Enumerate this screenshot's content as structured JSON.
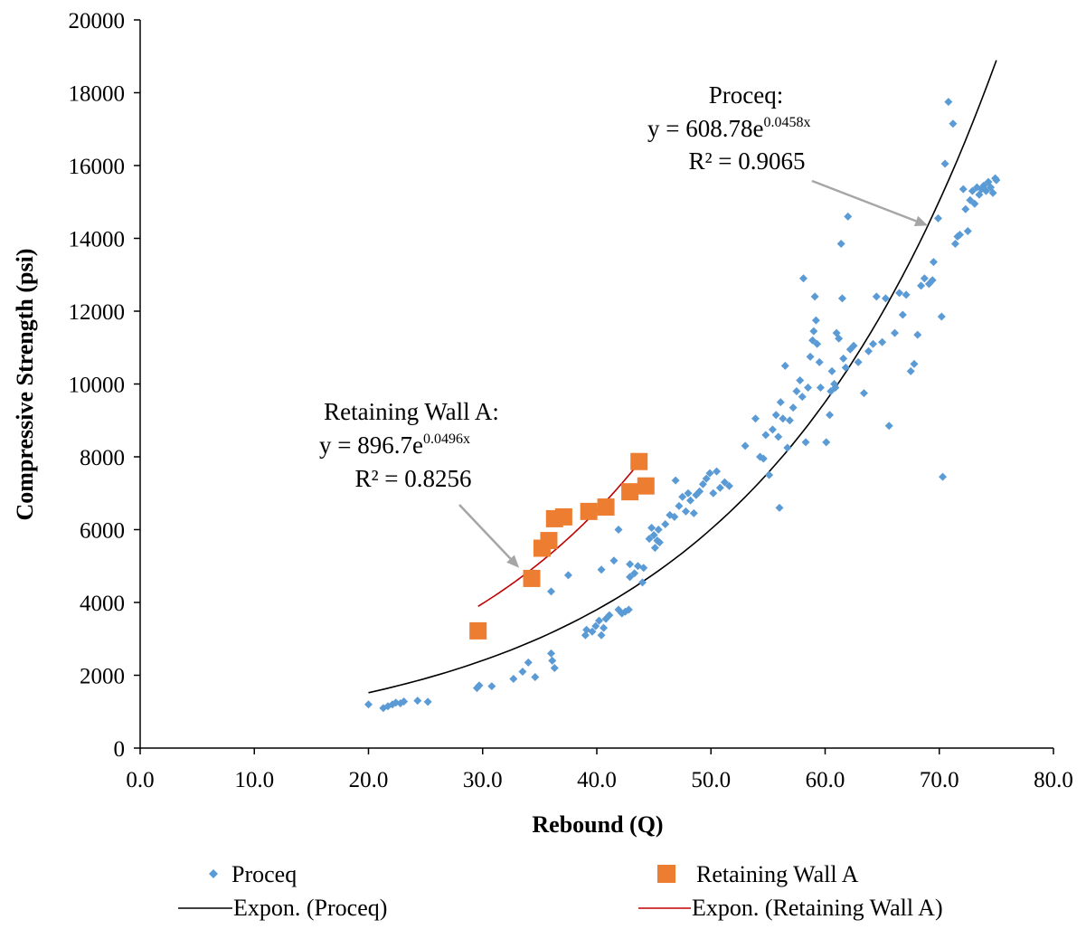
{
  "chart_data": {
    "type": "scatter",
    "title": "",
    "xlabel": "Rebound (Q)",
    "ylabel": "Compressive Strength (psi)",
    "xlim": [
      0,
      80
    ],
    "ylim": [
      0,
      20000
    ],
    "x_ticks": [
      "0.0",
      "10.0",
      "20.0",
      "30.0",
      "40.0",
      "50.0",
      "60.0",
      "70.0",
      "80.0"
    ],
    "y_ticks": [
      "0",
      "2000",
      "4000",
      "6000",
      "8000",
      "10000",
      "12000",
      "14000",
      "16000",
      "18000",
      "20000"
    ],
    "grid": false,
    "legend_position": "bottom",
    "series": [
      {
        "name": "Proceq",
        "marker": "diamond",
        "color": "#5B9BD5",
        "points": [
          [
            20.0,
            1200
          ],
          [
            21.3,
            1100
          ],
          [
            21.7,
            1150
          ],
          [
            22.1,
            1200
          ],
          [
            22.4,
            1250
          ],
          [
            22.8,
            1230
          ],
          [
            23.1,
            1280
          ],
          [
            24.3,
            1300
          ],
          [
            25.2,
            1270
          ],
          [
            29.5,
            1650
          ],
          [
            29.7,
            1720
          ],
          [
            30.8,
            1700
          ],
          [
            32.7,
            1900
          ],
          [
            33.5,
            2100
          ],
          [
            34.0,
            2350
          ],
          [
            34.6,
            1950
          ],
          [
            36.0,
            2600
          ],
          [
            36.1,
            2400
          ],
          [
            36.3,
            2200
          ],
          [
            36.0,
            4300
          ],
          [
            37.5,
            4750
          ],
          [
            39.0,
            3100
          ],
          [
            39.1,
            3250
          ],
          [
            39.6,
            3200
          ],
          [
            39.9,
            3350
          ],
          [
            40.2,
            3500
          ],
          [
            40.4,
            3100
          ],
          [
            40.6,
            3300
          ],
          [
            40.8,
            3550
          ],
          [
            41.1,
            3650
          ],
          [
            40.4,
            4900
          ],
          [
            41.5,
            5150
          ],
          [
            41.9,
            3800
          ],
          [
            42.2,
            3700
          ],
          [
            42.5,
            3750
          ],
          [
            42.8,
            3800
          ],
          [
            41.9,
            6000
          ],
          [
            42.9,
            4700
          ],
          [
            42.9,
            5050
          ],
          [
            43.3,
            4800
          ],
          [
            43.6,
            5000
          ],
          [
            44.0,
            4550
          ],
          [
            44.1,
            4950
          ],
          [
            44.6,
            5750
          ],
          [
            45.0,
            5850
          ],
          [
            45.1,
            5500
          ],
          [
            45.3,
            5700
          ],
          [
            45.5,
            5650
          ],
          [
            44.8,
            6050
          ],
          [
            45.4,
            6000
          ],
          [
            46.0,
            6150
          ],
          [
            46.4,
            6400
          ],
          [
            46.8,
            6350
          ],
          [
            46.9,
            7350
          ],
          [
            47.2,
            6650
          ],
          [
            47.5,
            6900
          ],
          [
            47.8,
            6500
          ],
          [
            48.0,
            7000
          ],
          [
            48.2,
            6800
          ],
          [
            48.5,
            6450
          ],
          [
            48.7,
            6950
          ],
          [
            49.0,
            7050
          ],
          [
            49.3,
            7250
          ],
          [
            49.6,
            7400
          ],
          [
            49.9,
            7550
          ],
          [
            50.2,
            7000
          ],
          [
            50.5,
            7600
          ],
          [
            50.8,
            7150
          ],
          [
            51.2,
            7300
          ],
          [
            51.6,
            7200
          ],
          [
            53.0,
            8300
          ],
          [
            53.9,
            9050
          ],
          [
            54.3,
            8000
          ],
          [
            54.6,
            7950
          ],
          [
            54.8,
            8600
          ],
          [
            55.1,
            7500
          ],
          [
            55.4,
            8750
          ],
          [
            55.7,
            9150
          ],
          [
            55.9,
            8550
          ],
          [
            56.0,
            6600
          ],
          [
            56.1,
            9500
          ],
          [
            56.3,
            9050
          ],
          [
            56.5,
            10500
          ],
          [
            56.7,
            8250
          ],
          [
            56.9,
            9000
          ],
          [
            57.2,
            9350
          ],
          [
            57.5,
            9800
          ],
          [
            57.8,
            10100
          ],
          [
            58.0,
            9650
          ],
          [
            58.1,
            12900
          ],
          [
            58.3,
            8400
          ],
          [
            58.5,
            9900
          ],
          [
            58.7,
            10750
          ],
          [
            58.9,
            11200
          ],
          [
            59.0,
            11450
          ],
          [
            59.1,
            12400
          ],
          [
            59.2,
            11750
          ],
          [
            59.3,
            11100
          ],
          [
            59.5,
            10600
          ],
          [
            59.6,
            9900
          ],
          [
            60.1,
            8400
          ],
          [
            60.4,
            9150
          ],
          [
            60.5,
            9800
          ],
          [
            60.6,
            10350
          ],
          [
            60.8,
            10000
          ],
          [
            61.0,
            11400
          ],
          [
            61.2,
            11250
          ],
          [
            61.4,
            13850
          ],
          [
            61.5,
            12350
          ],
          [
            61.6,
            10700
          ],
          [
            61.8,
            10450
          ],
          [
            62.0,
            14600
          ],
          [
            62.2,
            10950
          ],
          [
            62.5,
            11050
          ],
          [
            62.9,
            10600
          ],
          [
            63.4,
            9750
          ],
          [
            63.8,
            10900
          ],
          [
            64.2,
            11100
          ],
          [
            64.5,
            12400
          ],
          [
            65.0,
            11150
          ],
          [
            65.3,
            12350
          ],
          [
            65.6,
            8850
          ],
          [
            66.1,
            11400
          ],
          [
            66.5,
            12500
          ],
          [
            66.8,
            11900
          ],
          [
            67.1,
            12450
          ],
          [
            67.5,
            10350
          ],
          [
            67.8,
            10550
          ],
          [
            68.1,
            11350
          ],
          [
            68.4,
            12700
          ],
          [
            68.7,
            12900
          ],
          [
            69.1,
            12750
          ],
          [
            69.4,
            12850
          ],
          [
            69.5,
            13350
          ],
          [
            69.9,
            14550
          ],
          [
            70.2,
            11850
          ],
          [
            70.3,
            7450
          ],
          [
            70.5,
            16050
          ],
          [
            70.8,
            17750
          ],
          [
            71.2,
            17150
          ],
          [
            71.4,
            13850
          ],
          [
            71.6,
            14050
          ],
          [
            71.8,
            14100
          ],
          [
            72.1,
            15350
          ],
          [
            72.3,
            14800
          ],
          [
            72.5,
            14200
          ],
          [
            72.7,
            15050
          ],
          [
            72.9,
            15300
          ],
          [
            73.1,
            14950
          ],
          [
            73.3,
            15400
          ],
          [
            73.5,
            15200
          ],
          [
            73.7,
            15350
          ],
          [
            73.9,
            15450
          ],
          [
            74.1,
            15300
          ],
          [
            74.3,
            15550
          ],
          [
            74.5,
            15400
          ],
          [
            74.7,
            15250
          ],
          [
            74.9,
            15650
          ],
          [
            75.0,
            15600
          ],
          [
            60.9,
            9900
          ]
        ]
      },
      {
        "name": "Retaining Wall A",
        "marker": "square",
        "color": "#ED7D31",
        "points": [
          [
            29.6,
            3220
          ],
          [
            34.3,
            4660
          ],
          [
            35.2,
            5490
          ],
          [
            35.8,
            5700
          ],
          [
            36.3,
            6300
          ],
          [
            37.1,
            6350
          ],
          [
            39.3,
            6500
          ],
          [
            40.8,
            6620
          ],
          [
            42.9,
            7040
          ],
          [
            43.7,
            7870
          ],
          [
            44.3,
            7200
          ]
        ]
      }
    ],
    "trendlines": [
      {
        "name": "Expon. (Proceq)",
        "type": "exponential",
        "a": 608.78,
        "b": 0.0458,
        "x_range": [
          20,
          75
        ],
        "color": "#000000"
      },
      {
        "name": "Expon. (Retaining Wall A)",
        "type": "exponential",
        "a": 896.7,
        "b": 0.0496,
        "x_range": [
          29.6,
          44.3
        ],
        "color": "#C00000"
      }
    ],
    "annotations": [
      {
        "lines": [
          "Proceq:",
          "y = 608.78e",
          "R² = 0.9065"
        ],
        "exponent": "0.0458x",
        "arrow_to": [
          69.0,
          14350
        ]
      },
      {
        "lines": [
          "Retaining Wall A:",
          "y = 896.7e",
          "R² = 0.8256"
        ],
        "exponent": "0.0496x",
        "arrow_to": [
          33.2,
          4950
        ]
      }
    ]
  }
}
